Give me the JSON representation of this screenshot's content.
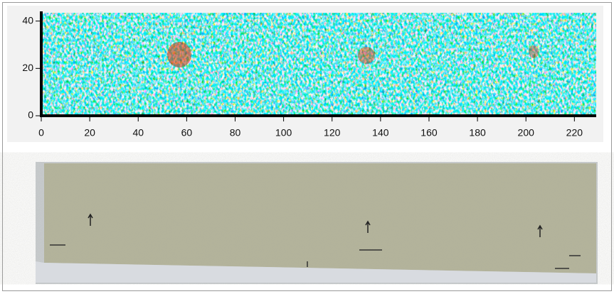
{
  "chart_data": {
    "type": "heatmap",
    "xlim": [
      0,
      229
    ],
    "xticks": [
      0,
      20,
      40,
      60,
      80,
      100,
      120,
      140,
      160,
      180,
      200,
      220
    ],
    "ylim": [
      0,
      43.5
    ],
    "yticks": [
      0,
      20,
      40
    ],
    "colormap": [
      "#0000c8",
      "#0080ff",
      "#00e0ff",
      "#ffff40",
      "#ff4000",
      "#a00000"
    ]
  }
}
